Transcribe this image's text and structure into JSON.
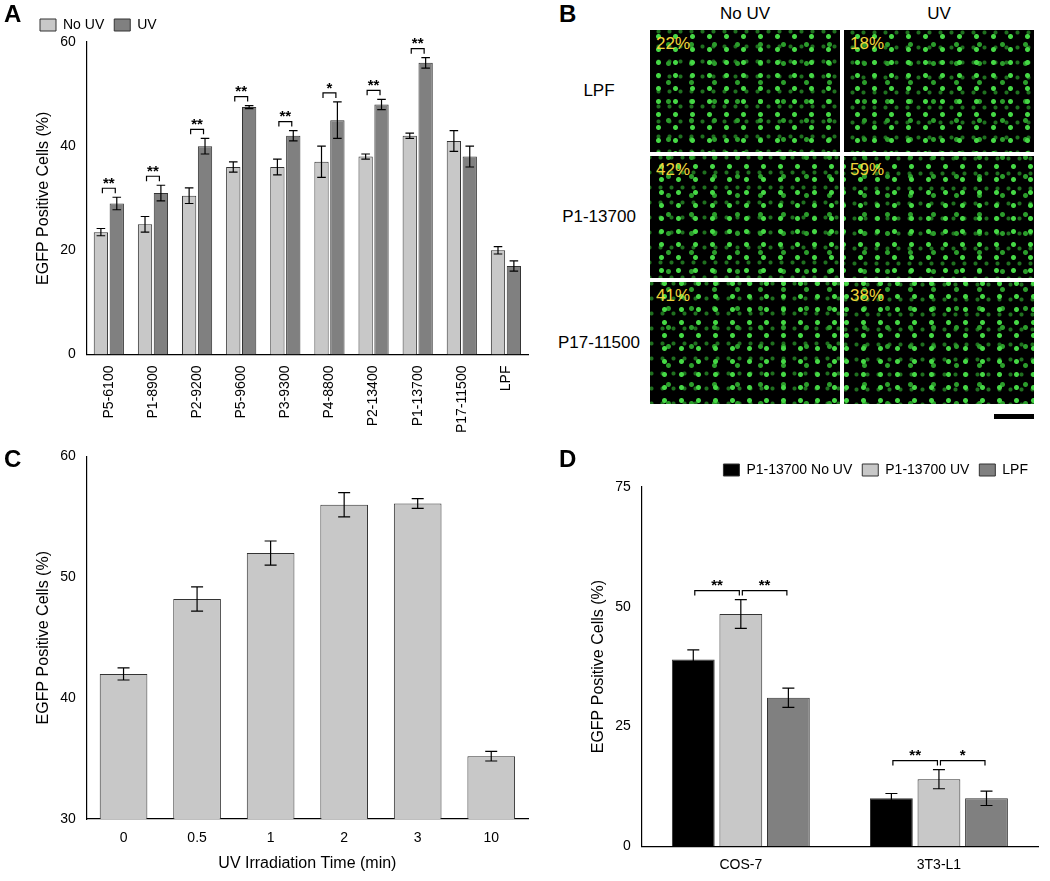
{
  "chart_data": [
    {
      "panel": "A",
      "type": "bar",
      "y_label": "EGFP Positive Cells (%)",
      "categories": [
        "P5-6100",
        "P1-8900",
        "P2-9200",
        "P5-9600",
        "P3-9300",
        "P4-8800",
        "P2-13400",
        "P1-13700",
        "P17-11500",
        "LPF"
      ],
      "series": [
        {
          "name": "No UV",
          "color": "#c8c8c8",
          "values": [
            23.5,
            25,
            30.5,
            36,
            36,
            37,
            38,
            42,
            41,
            20
          ],
          "errors": [
            0.7,
            1.5,
            1.5,
            1,
            1.5,
            3,
            0.5,
            0.5,
            2,
            0.7
          ]
        },
        {
          "name": "UV",
          "color": "#808080",
          "values": [
            29,
            31,
            40,
            47.5,
            42,
            45,
            48,
            56,
            38,
            17
          ],
          "errors": [
            1.2,
            1.5,
            1.5,
            0.3,
            1,
            3.5,
            1,
            1,
            2,
            1
          ]
        }
      ],
      "ylim": [
        0,
        60
      ],
      "yticks": [
        0,
        20,
        40,
        60
      ],
      "grid": false,
      "legend": "upper left",
      "significance": [
        {
          "category": "P5-6100",
          "from": "No UV",
          "to": "UV",
          "text": "**"
        },
        {
          "category": "P1-8900",
          "from": "No UV",
          "to": "UV",
          "text": "**"
        },
        {
          "category": "P2-9200",
          "from": "No UV",
          "to": "UV",
          "text": "**"
        },
        {
          "category": "P5-9600",
          "from": "No UV",
          "to": "UV",
          "text": "**"
        },
        {
          "category": "P3-9300",
          "from": "No UV",
          "to": "UV",
          "text": "**"
        },
        {
          "category": "P4-8800",
          "from": "No UV",
          "to": "UV",
          "text": "*"
        },
        {
          "category": "P2-13400",
          "from": "No UV",
          "to": "UV",
          "text": "**"
        },
        {
          "category": "P1-13700",
          "from": "No UV",
          "to": "UV",
          "text": "**"
        }
      ]
    },
    {
      "panel": "C",
      "type": "bar",
      "y_label": "EGFP Positive Cells (%)",
      "x_label": "UV Irradiation Time (min)",
      "categories": [
        "0",
        "0.5",
        "1",
        "2",
        "3",
        "10"
      ],
      "series": [
        {
          "name": "UV Irradiation Time",
          "color": "#c8c8c8",
          "values": [
            42,
            48.2,
            52,
            56,
            56.1,
            35.2
          ],
          "errors": [
            0.5,
            1,
            1,
            1,
            0.4,
            0.4
          ]
        }
      ],
      "ylim": [
        30,
        60
      ],
      "yticks": [
        30,
        40,
        50,
        60
      ],
      "grid": false
    },
    {
      "panel": "D",
      "type": "bar",
      "y_label": "EGFP Positive Cells (%)",
      "categories": [
        "COS-7",
        "3T3-L1"
      ],
      "series": [
        {
          "name": "P1-13700 No UV",
          "color": "#000000",
          "values": [
            39,
            10
          ],
          "errors": [
            2,
            1
          ]
        },
        {
          "name": "P1-13700 UV",
          "color": "#c8c8c8",
          "values": [
            48.5,
            14
          ],
          "errors": [
            3,
            2
          ]
        },
        {
          "name": "LPF",
          "color": "#808080",
          "values": [
            31,
            10
          ],
          "errors": [
            2,
            1.5
          ]
        }
      ],
      "ylim": [
        0,
        75
      ],
      "yticks": [
        0,
        25,
        50,
        75
      ],
      "grid": false,
      "legend": "upper right",
      "significance": [
        {
          "category": "COS-7",
          "from": "P1-13700 No UV",
          "to": "P1-13700 UV",
          "text": "**"
        },
        {
          "category": "COS-7",
          "from": "P1-13700 UV",
          "to": "LPF",
          "text": "**"
        },
        {
          "category": "3T3-L1",
          "from": "P1-13700 No UV",
          "to": "P1-13700 UV",
          "text": "**"
        },
        {
          "category": "3T3-L1",
          "from": "P1-13700 UV",
          "to": "LPF",
          "text": "*"
        }
      ]
    }
  ],
  "image_panel": {
    "panel": "B",
    "columns": [
      "No UV",
      "UV"
    ],
    "rows": [
      {
        "label": "LPF",
        "cells": [
          "22%",
          "18%"
        ]
      },
      {
        "label": "P1-13700",
        "cells": [
          "42%",
          "59%"
        ]
      },
      {
        "label": "P17-11500",
        "cells": [
          "41%",
          "38%"
        ]
      }
    ]
  }
}
